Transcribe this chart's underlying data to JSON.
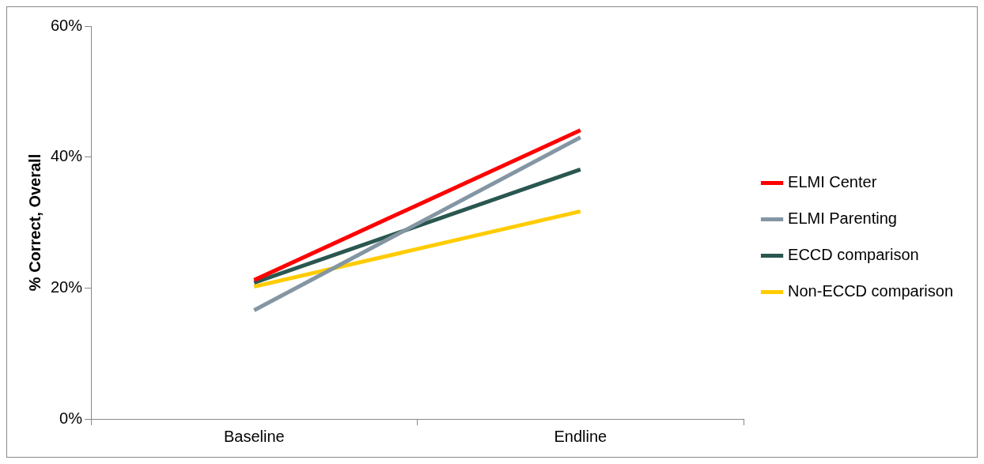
{
  "chart_data": {
    "type": "line",
    "ylabel": "% Correct, Overall",
    "categories": [
      "Baseline",
      "Endline"
    ],
    "series": [
      {
        "name": "ELMI Center",
        "color": "#ff0000",
        "values": [
          21.2,
          44.1
        ]
      },
      {
        "name": "ELMI Parenting",
        "color": "#8496a3",
        "values": [
          16.6,
          43.0
        ]
      },
      {
        "name": "ECCD comparison",
        "color": "#2a5750",
        "values": [
          20.8,
          38.1
        ]
      },
      {
        "name": "Non-ECCD comparison",
        "color": "#ffcc00",
        "values": [
          20.2,
          31.7
        ]
      }
    ],
    "ylim": [
      0,
      60
    ],
    "yticks": [
      {
        "value": 0,
        "label": "0%"
      },
      {
        "value": 20,
        "label": "20%"
      },
      {
        "value": 40,
        "label": "40%"
      },
      {
        "value": 60,
        "label": "60%"
      }
    ],
    "grid": false,
    "legend": "right",
    "marker": "none",
    "line_style": "solid"
  }
}
